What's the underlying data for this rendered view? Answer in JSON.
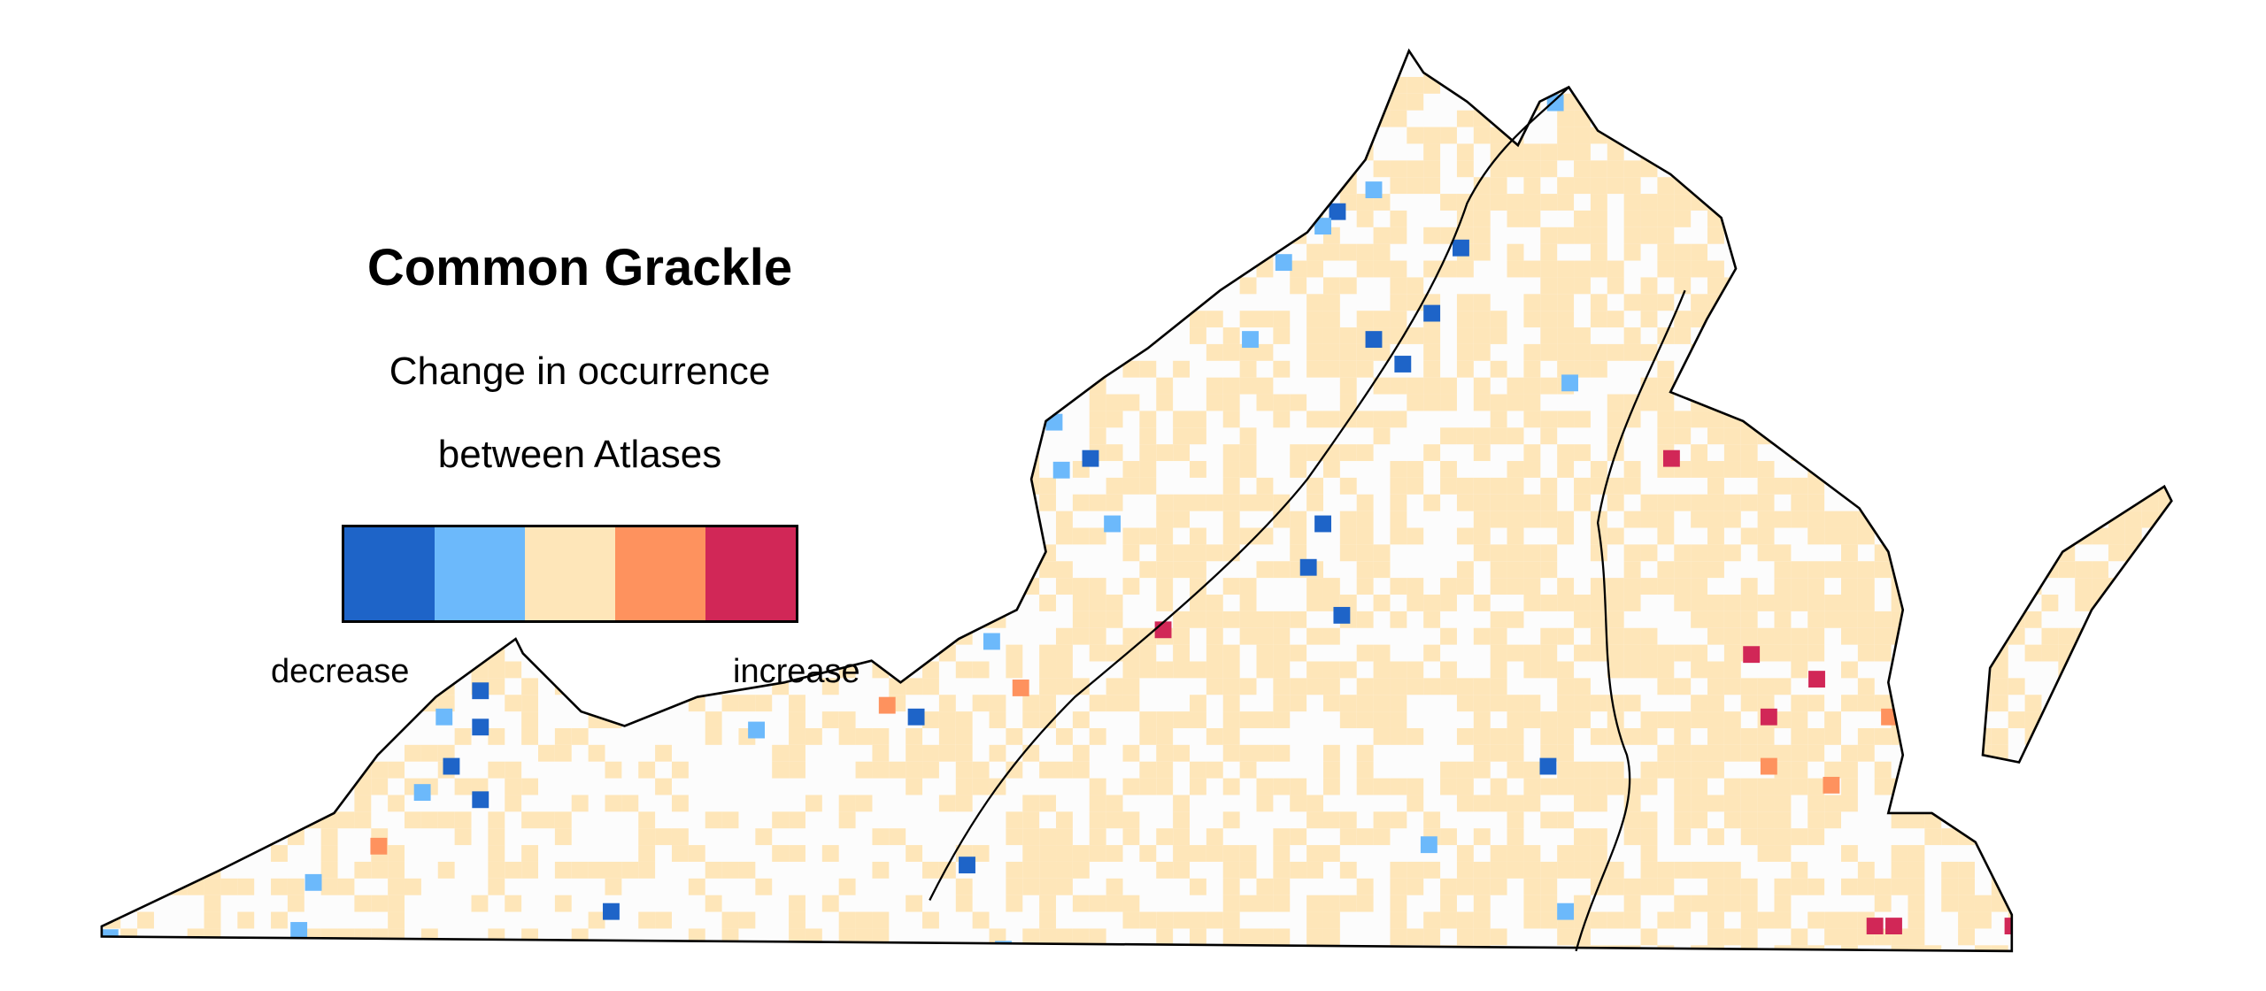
{
  "chart_data": {
    "type": "heatmap",
    "title": "Common Grackle",
    "subtitle_lines": [
      "Change in occurrence",
      "between Atlases"
    ],
    "legend": {
      "low_label": "decrease",
      "high_label": "increase",
      "colors": [
        "#1e64c8",
        "#6cb9fb",
        "#fee6b9",
        "#fe925e",
        "#d12757"
      ]
    },
    "region": "Virginia"
  },
  "colors": {
    "outline": "#000000",
    "county_lines": "#808080",
    "no_data": "#fcfcfc"
  }
}
